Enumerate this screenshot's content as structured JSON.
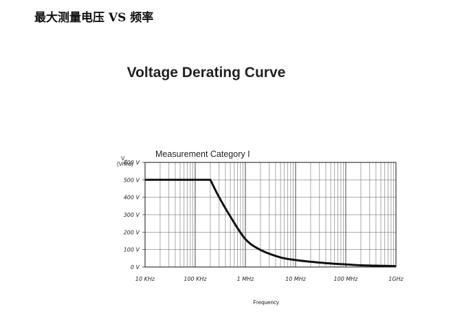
{
  "page": {
    "heading": "最大测量电压 VS 频率"
  },
  "chart_data": {
    "type": "line",
    "title": "Voltage Derating Curve",
    "subtitle": "Measurement Category I",
    "xlabel": "Frequency",
    "ylabel_main": "V",
    "ylabel_sub": "IN",
    "ylabel_unit": "(Vrms)",
    "x_scale": "log",
    "xlim": [
      10000,
      1000000000
    ],
    "ylim": [
      0,
      600
    ],
    "grid": true,
    "x_ticks": [
      {
        "value": 10000,
        "label": "10 KHz"
      },
      {
        "value": 100000,
        "label": "100 KHz"
      },
      {
        "value": 1000000,
        "label": "1 MHz"
      },
      {
        "value": 10000000,
        "label": "10 MHz"
      },
      {
        "value": 100000000,
        "label": "100 MHz"
      },
      {
        "value": 1000000000,
        "label": "1GHz"
      }
    ],
    "y_ticks": [
      {
        "value": 0,
        "label": "0 V"
      },
      {
        "value": 100,
        "label": "100 V"
      },
      {
        "value": 200,
        "label": "200 V"
      },
      {
        "value": 300,
        "label": "300 V"
      },
      {
        "value": 400,
        "label": "400 V"
      },
      {
        "value": 500,
        "label": "500 V"
      },
      {
        "value": 600,
        "label": "600 V"
      }
    ],
    "series": [
      {
        "color": "#111111",
        "x": [
          10000,
          200000,
          300000,
          500000,
          1000000,
          2000000,
          5000000,
          10000000,
          20000000,
          50000000,
          100000000,
          200000000,
          500000000,
          1000000000
        ],
        "y": [
          500,
          500,
          400,
          290,
          160,
          98,
          55,
          40,
          30,
          20,
          15,
          10,
          7,
          5
        ]
      }
    ]
  }
}
